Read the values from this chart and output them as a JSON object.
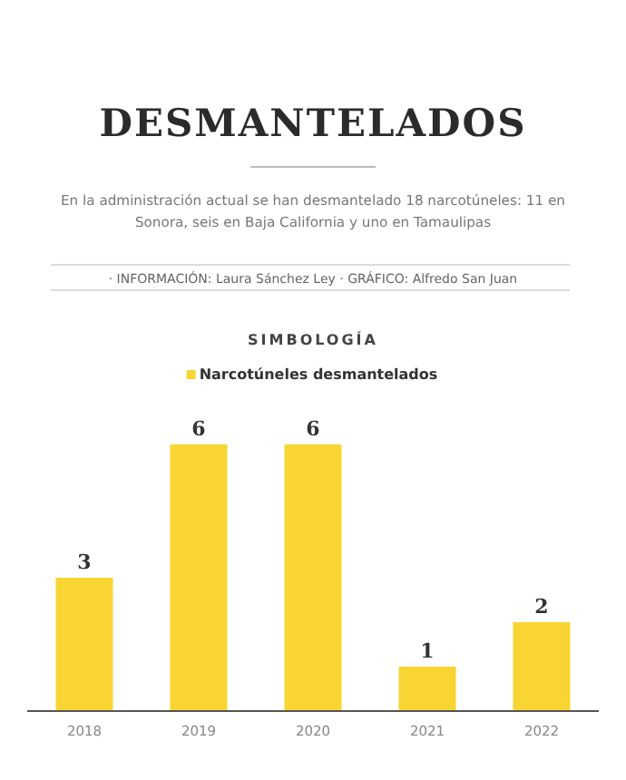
{
  "chart_data": {
    "type": "bar",
    "title": "DESMANTELADOS",
    "subtitle": "En la administración actual se han desmantelado 18 narcotúneles: 11 en Sonora, seis en Baja California y uno en Tamaulipas",
    "annotations": [
      "· INFORMACIÓN: Laura Sánchez Ley · GRÁFICO: Alfredo San Juan"
    ],
    "legend_title": "SIMBOLOGÍA",
    "legend": "top",
    "categories": [
      "2018",
      "2019",
      "2020",
      "2021",
      "2022"
    ],
    "series": [
      {
        "name": "Narcotúneles desmantelados",
        "color": "#f8d532",
        "values": [
          3,
          6,
          6,
          1,
          2
        ]
      }
    ],
    "ylim": [
      0,
      6
    ],
    "data_labels": true
  }
}
